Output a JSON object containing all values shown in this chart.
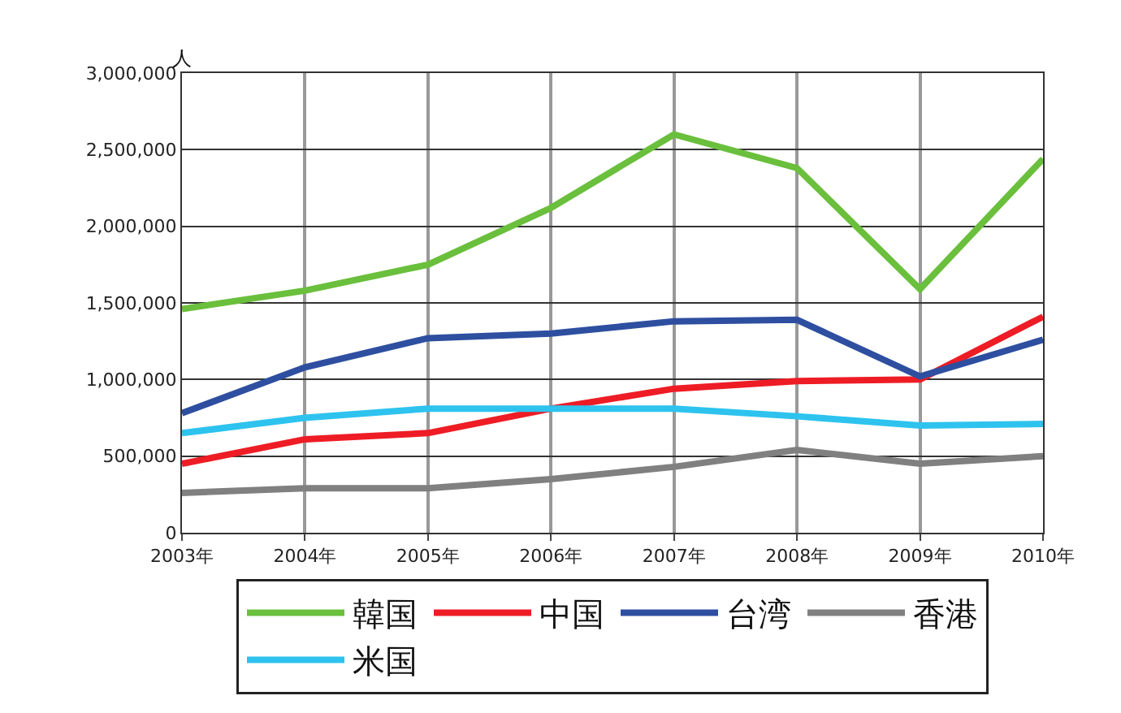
{
  "chart_data": {
    "type": "line",
    "ylabel": "人",
    "categories": [
      "2003年",
      "2004年",
      "2005年",
      "2006年",
      "2007年",
      "2008年",
      "2009年",
      "2010年"
    ],
    "series": [
      {
        "name": "韓国",
        "color": "#6abf3c",
        "values": [
          1460000,
          1580000,
          1750000,
          2120000,
          2600000,
          2380000,
          1590000,
          2440000
        ]
      },
      {
        "name": "中国",
        "color": "#ee1c25",
        "values": [
          450000,
          610000,
          650000,
          810000,
          940000,
          990000,
          1000000,
          1410000
        ]
      },
      {
        "name": "台湾",
        "color": "#2e4fa0",
        "values": [
          780000,
          1080000,
          1270000,
          1300000,
          1380000,
          1390000,
          1020000,
          1260000
        ]
      },
      {
        "name": "香港",
        "color": "#808080",
        "values": [
          260000,
          290000,
          290000,
          350000,
          430000,
          540000,
          450000,
          500000
        ]
      },
      {
        "name": "米国",
        "color": "#2dc3ee",
        "values": [
          650000,
          750000,
          810000,
          810000,
          810000,
          760000,
          700000,
          710000
        ]
      }
    ],
    "ylim": [
      0,
      3000000
    ],
    "yticks": [
      0,
      {
        "value": 500000,
        "label": "500,000"
      },
      {
        "value": 1000000,
        "label": "1,000,000"
      },
      {
        "value": 1500000,
        "label": "1,500,000"
      },
      {
        "value": 2000000,
        "label": "2,000,000"
      },
      {
        "value": 2500000,
        "label": "2,500,000"
      },
      {
        "value": 3000000,
        "label": "3,000,000"
      }
    ],
    "grid": true,
    "legend": "bottom",
    "marker": "none",
    "line_style": "solid"
  }
}
